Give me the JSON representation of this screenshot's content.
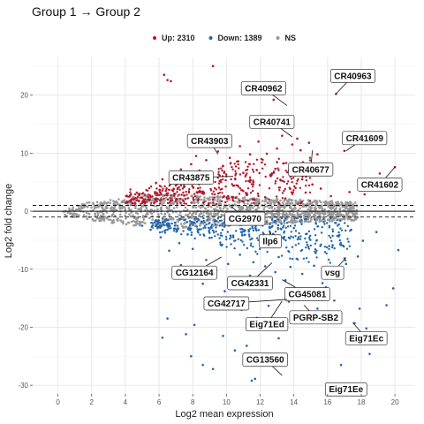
{
  "chart_data": {
    "type": "scatter",
    "title": "Group 1 → Group 2",
    "xlabel": "Log2 mean expression",
    "ylabel": "Log2 fold change",
    "xlim": [
      -1.5,
      21.2
    ],
    "ylim": [
      -31.5,
      26.5
    ],
    "x_ticks": [
      0,
      2,
      4,
      6,
      8,
      10,
      12,
      14,
      16,
      18,
      20
    ],
    "y_ticks": [
      -30,
      -20,
      -10,
      0,
      10,
      20
    ],
    "thresholds": [
      1,
      -1
    ],
    "legend": {
      "position": "top",
      "entries": [
        {
          "label": "Up: 2310",
          "color": "#b2182b"
        },
        {
          "label": "Down: 1389",
          "color": "#2166ac"
        },
        {
          "label": "NS",
          "color": "#999999"
        }
      ]
    },
    "series": [
      {
        "name": "Up: 2310",
        "color": "#b2182b",
        "points": [
          [
            6.3,
            23.5
          ],
          [
            6.5,
            22.6
          ],
          [
            6.7,
            22.4
          ],
          [
            9.2,
            25.0
          ],
          [
            12.8,
            19.2
          ],
          [
            13.6,
            14.8
          ],
          [
            13.9,
            11.5
          ],
          [
            14.4,
            10.5
          ],
          [
            14.9,
            11.8
          ],
          [
            15.4,
            9.8
          ],
          [
            16.5,
            20.2
          ],
          [
            17.0,
            10.4
          ],
          [
            20.0,
            7.6
          ],
          [
            19.1,
            6.5
          ],
          [
            8.8,
            8.8
          ],
          [
            8.2,
            9.5
          ],
          [
            10.2,
            9.2
          ],
          [
            11.4,
            9.8
          ],
          [
            12.1,
            8.4
          ],
          [
            12.6,
            6.2
          ],
          [
            13.2,
            5.4
          ],
          [
            14.1,
            4.0
          ],
          [
            14.7,
            3.2
          ],
          [
            15.1,
            4.6
          ],
          [
            6.4,
            3.5
          ],
          [
            7.1,
            4.8
          ],
          [
            7.8,
            6.1
          ],
          [
            8.4,
            7.0
          ],
          [
            9.0,
            6.8
          ],
          [
            9.6,
            5.2
          ],
          [
            10.4,
            4.4
          ],
          [
            11.0,
            6.6
          ],
          [
            11.6,
            5.0
          ],
          [
            6.0,
            2.8
          ],
          [
            5.5,
            2.5
          ],
          [
            6.9,
            3.0
          ],
          [
            7.5,
            2.7
          ],
          [
            8.6,
            3.4
          ],
          [
            9.3,
            2.9
          ],
          [
            10.1,
            2.6
          ],
          [
            11.2,
            3.1
          ],
          [
            12.3,
            2.4
          ],
          [
            13.5,
            2.2
          ],
          [
            7.3,
            7.2
          ],
          [
            9.8,
            7.8
          ],
          [
            10.7,
            8.6
          ],
          [
            12.9,
            7.3
          ],
          [
            13.8,
            6.0
          ],
          [
            14.5,
            5.5
          ],
          [
            15.6,
            3.9
          ],
          [
            16.2,
            2.6
          ],
          [
            17.3,
            3.3
          ],
          [
            18.2,
            2.9
          ],
          [
            5.1,
            2.0
          ],
          [
            4.8,
            1.8
          ],
          [
            6.2,
            5.5
          ],
          [
            7.9,
            8.1
          ],
          [
            8.9,
            5.9
          ],
          [
            11.8,
            7.1
          ],
          [
            12.4,
            9.9
          ],
          [
            13.0,
            10.8
          ],
          [
            14.2,
            12.5
          ],
          [
            10.8,
            11.2
          ],
          [
            11.9,
            12.0
          ],
          [
            13.3,
            13.0
          ],
          [
            9.5,
            10.3
          ]
        ]
      },
      {
        "name": "Down: 1389",
        "color": "#2166ac",
        "points": [
          [
            6.2,
            -21.8
          ],
          [
            7.6,
            -21.2
          ],
          [
            9.8,
            -21.5
          ],
          [
            10.5,
            -24.0
          ],
          [
            11.2,
            -23.2
          ],
          [
            7.9,
            -25.0
          ],
          [
            8.6,
            -26.5
          ],
          [
            9.2,
            -27.2
          ],
          [
            11.7,
            -28.9
          ],
          [
            11.5,
            -29.2
          ],
          [
            16.8,
            -26.5
          ],
          [
            17.2,
            -21.0
          ],
          [
            18.5,
            -24.6
          ],
          [
            18.3,
            -20.2
          ],
          [
            17.6,
            -19.3
          ],
          [
            19.5,
            -16.2
          ],
          [
            19.9,
            -13.3
          ],
          [
            20.2,
            -6.7
          ],
          [
            17.8,
            -7.8
          ],
          [
            17.1,
            -9.1
          ],
          [
            16.6,
            -11.2
          ],
          [
            15.7,
            -12.4
          ],
          [
            14.9,
            -14.4
          ],
          [
            14.2,
            -13.9
          ],
          [
            13.5,
            -11.9
          ],
          [
            12.9,
            -10.5
          ],
          [
            12.3,
            -9.5
          ],
          [
            11.6,
            -8.8
          ],
          [
            10.8,
            -7.5
          ],
          [
            10.1,
            -9.1
          ],
          [
            9.4,
            -10.2
          ],
          [
            8.8,
            -8.4
          ],
          [
            8.0,
            -6.5
          ],
          [
            7.2,
            -5.5
          ],
          [
            6.6,
            -6.8
          ],
          [
            6.1,
            -4.5
          ],
          [
            5.5,
            -3.2
          ],
          [
            5.0,
            -2.5
          ],
          [
            6.9,
            -3.0
          ],
          [
            7.7,
            -4.0
          ],
          [
            8.3,
            -3.5
          ],
          [
            9.0,
            -4.6
          ],
          [
            9.7,
            -5.9
          ],
          [
            10.4,
            -4.2
          ],
          [
            11.1,
            -3.3
          ],
          [
            11.9,
            -5.0
          ],
          [
            12.6,
            -3.8
          ],
          [
            13.4,
            -4.5
          ],
          [
            14.0,
            -2.9
          ],
          [
            14.8,
            -5.8
          ],
          [
            15.3,
            -7.2
          ],
          [
            16.1,
            -6.0
          ],
          [
            16.7,
            -4.1
          ],
          [
            17.4,
            -3.2
          ],
          [
            18.1,
            -5.1
          ],
          [
            18.9,
            -3.6
          ],
          [
            13.1,
            -7.9
          ],
          [
            13.8,
            -9.6
          ],
          [
            14.5,
            -10.8
          ],
          [
            15.2,
            -9.4
          ],
          [
            15.9,
            -13.1
          ],
          [
            16.4,
            -15.4
          ],
          [
            12.1,
            -13.2
          ],
          [
            11.4,
            -11.1
          ],
          [
            10.6,
            -12.2
          ],
          [
            9.9,
            -13.8
          ],
          [
            8.6,
            -12.5
          ],
          [
            7.3,
            -9.3
          ],
          [
            13.7,
            -15.6
          ],
          [
            14.6,
            -17.5
          ],
          [
            15.4,
            -16.8
          ],
          [
            12.5,
            -16.3
          ],
          [
            11.8,
            -18.4
          ],
          [
            10.9,
            -17.0
          ],
          [
            16.3,
            -18.2
          ],
          [
            17.9,
            -16.8
          ],
          [
            6.5,
            -18.5
          ],
          [
            8.1,
            -19.6
          ],
          [
            9.5,
            -16.9
          ],
          [
            13.1,
            -21.9
          ]
        ]
      },
      {
        "name": "NS",
        "color": "#999999",
        "band": true
      }
    ],
    "labels": [
      {
        "gene": "CR40962",
        "x": 13.6,
        "y": 18.2,
        "lx": 12.2,
        "ly": 21.2
      },
      {
        "gene": "CR40963",
        "x": 16.5,
        "y": 20.2,
        "lx": 17.5,
        "ly": 23.3
      },
      {
        "gene": "CR40741",
        "x": 13.9,
        "y": 12.8,
        "lx": 12.7,
        "ly": 15.4
      },
      {
        "gene": "CR43903",
        "x": 9.5,
        "y": 9.8,
        "lx": 9.0,
        "ly": 12.1
      },
      {
        "gene": "CR41609",
        "x": 17.1,
        "y": 10.4,
        "lx": 18.2,
        "ly": 12.6
      },
      {
        "gene": "CR40677",
        "x": 15.1,
        "y": 10.5,
        "lx": 15.0,
        "ly": 7.2
      },
      {
        "gene": "CR43875",
        "x": 10.4,
        "y": 6.0,
        "lx": 7.9,
        "ly": 5.8
      },
      {
        "gene": "CR41602",
        "x": 20.0,
        "y": 7.6,
        "lx": 19.1,
        "ly": 4.6
      },
      {
        "gene": "CG2970",
        "x": 10.3,
        "y": 0.8,
        "lx": 11.1,
        "ly": -1.3
      },
      {
        "gene": "Ilp6",
        "x": 12.6,
        "y": -3.5,
        "lx": 12.6,
        "ly": -5.2
      },
      {
        "gene": "CG12164",
        "x": 9.7,
        "y": -7.9,
        "lx": 8.1,
        "ly": -10.6
      },
      {
        "gene": "vsg",
        "x": 17.1,
        "y": -8.0,
        "lx": 16.3,
        "ly": -10.6
      },
      {
        "gene": "CG42331",
        "x": 12.7,
        "y": -8.9,
        "lx": 11.4,
        "ly": -12.4
      },
      {
        "gene": "CG45081",
        "x": 13.3,
        "y": -11.8,
        "lx": 14.8,
        "ly": -14.3
      },
      {
        "gene": "CG42717",
        "x": 13.6,
        "y": -15.2,
        "lx": 10.0,
        "ly": -15.9
      },
      {
        "gene": "PGRP-SB2",
        "x": 14.6,
        "y": -16.2,
        "lx": 15.3,
        "ly": -18.3
      },
      {
        "gene": "Eig71Ed",
        "x": 13.3,
        "y": -15.5,
        "lx": 12.4,
        "ly": -19.5
      },
      {
        "gene": "Eig71Ec",
        "x": 17.5,
        "y": -19.2,
        "lx": 18.3,
        "ly": -21.9
      },
      {
        "gene": "CG13560",
        "x": 13.3,
        "y": -28.3,
        "lx": 12.3,
        "ly": -25.6
      },
      {
        "gene": "Eig71Ee",
        "x": 15.9,
        "y": -29.8,
        "lx": 17.1,
        "ly": -30.7
      }
    ]
  }
}
